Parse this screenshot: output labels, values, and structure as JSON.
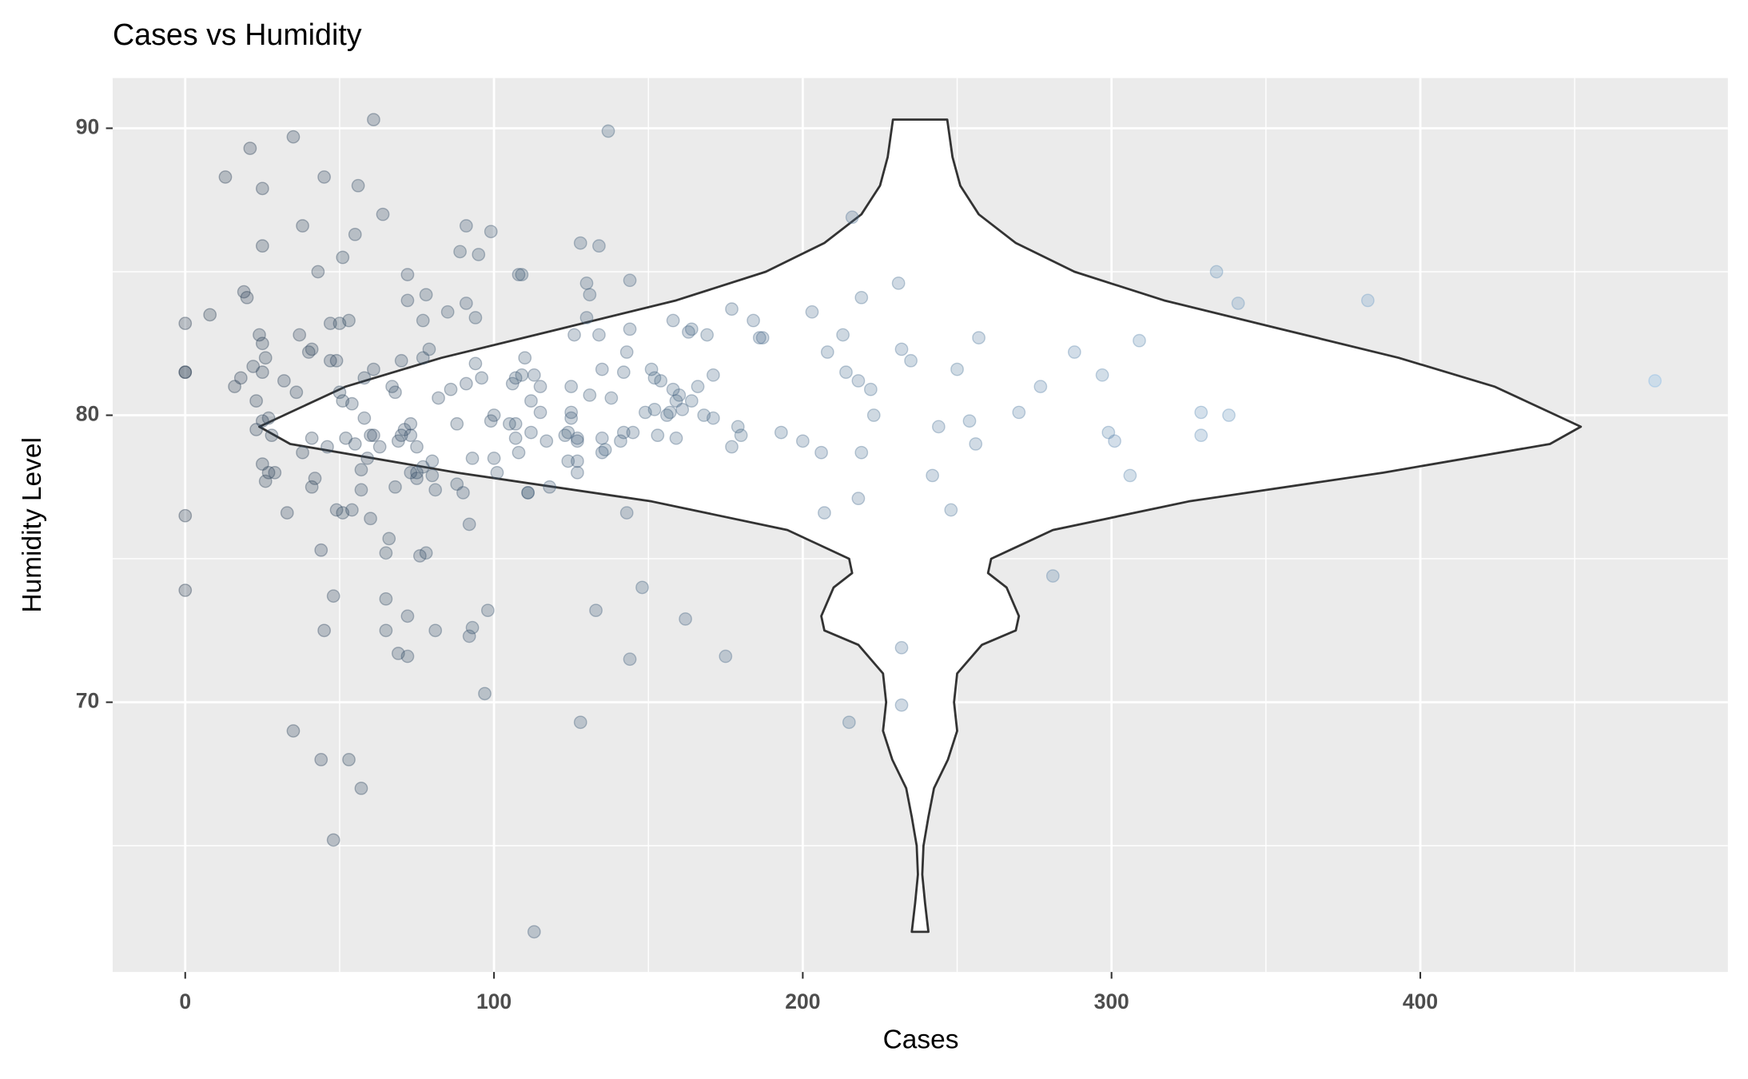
{
  "chart_data": {
    "type": "scatter",
    "title": "Cases vs Humidity",
    "x_label": "Cases",
    "y_label": "Humidity Level",
    "xlim": [
      -23.5,
      499.6
    ],
    "ylim": [
      60.6,
      91.75
    ],
    "xticks": [
      0,
      100,
      200,
      300,
      400
    ],
    "yticks": [
      70,
      80,
      90
    ],
    "xminor": [
      50,
      150,
      250,
      350,
      450
    ],
    "yminor": [
      65,
      75,
      85
    ],
    "grid": true,
    "color_low": "#2a3d52",
    "color_high": "#7fb6e5",
    "opacity": 0.28,
    "violin": {
      "x": 238,
      "y": [
        90.3,
        89,
        88,
        87,
        86,
        85,
        84,
        83,
        82,
        81,
        80,
        79.6,
        79,
        78,
        77,
        76,
        75,
        74.5,
        74,
        73,
        72.5,
        72,
        71,
        70,
        69,
        68,
        67,
        66,
        65,
        64,
        63,
        62
      ],
      "half_width": [
        8.8,
        10.5,
        13,
        19,
        31,
        50,
        79,
        117,
        155,
        186,
        206,
        214,
        204,
        150,
        87,
        43,
        23,
        22,
        28,
        32,
        31,
        20,
        12,
        11,
        12,
        9,
        4.5,
        2.7,
        1.1,
        0.7,
        1.6,
        2.7
      ]
    },
    "x": [
      0,
      0,
      0,
      0,
      0,
      8,
      13,
      16,
      18,
      19,
      20,
      21,
      22,
      23,
      23,
      24,
      25,
      25,
      25,
      25,
      25,
      25,
      26,
      26,
      27,
      27,
      28,
      29,
      32,
      33,
      35,
      35,
      36,
      37,
      38,
      38,
      40,
      41,
      41,
      42,
      41,
      43,
      44,
      45,
      44,
      45,
      46,
      47,
      47,
      48,
      48,
      49,
      49,
      50,
      50,
      51,
      51,
      51,
      52,
      53,
      53,
      54,
      54,
      55,
      55,
      56,
      57,
      57,
      57,
      58,
      58,
      59,
      60,
      60,
      61,
      61,
      61,
      63,
      64,
      65,
      65,
      65,
      66,
      67,
      68,
      68,
      69,
      69,
      70,
      70,
      71,
      72,
      72,
      72,
      72,
      73,
      73,
      73,
      75,
      75,
      75,
      76,
      77,
      77,
      78,
      78,
      77,
      79,
      80,
      80,
      81,
      81,
      82,
      85,
      86,
      88,
      88,
      89,
      90,
      91,
      91,
      91,
      92,
      92,
      93,
      93,
      94,
      94,
      95,
      96,
      97,
      98,
      99,
      99,
      100,
      100,
      101,
      105,
      106,
      107,
      107,
      107,
      108,
      108,
      109,
      109,
      110,
      111,
      111,
      112,
      112,
      113,
      113,
      115,
      115,
      117,
      118,
      123,
      124,
      124,
      125,
      125,
      125,
      126,
      127,
      127,
      127,
      127,
      128,
      128,
      130,
      130,
      131,
      131,
      133,
      134,
      134,
      135,
      135,
      136,
      135,
      137,
      138,
      141,
      142,
      142,
      143,
      143,
      144,
      144,
      144,
      145,
      148,
      149,
      151,
      152,
      152,
      153,
      154,
      156,
      157,
      158,
      158,
      159,
      159,
      160,
      161,
      162,
      163,
      164,
      164,
      166,
      168,
      169,
      171,
      171,
      175,
      177,
      177,
      179,
      180,
      184,
      186,
      187,
      193,
      200,
      203,
      206,
      207,
      208,
      213,
      214,
      215,
      216,
      218,
      218,
      219,
      219,
      222,
      223,
      231,
      232,
      232,
      232,
      235,
      242,
      244,
      248,
      250,
      254,
      256,
      257,
      270,
      277,
      281,
      288,
      297,
      299,
      301,
      306,
      309,
      329,
      329,
      334,
      338,
      341,
      383,
      476
    ],
    "values": [
      83.2,
      81.5,
      81.5,
      76.5,
      73.9,
      83.5,
      88.3,
      81,
      81.3,
      84.3,
      84.1,
      89.3,
      81.7,
      80.5,
      79.5,
      82.8,
      87.9,
      85.9,
      82.5,
      81.5,
      79.8,
      78.3,
      77.7,
      82,
      79.9,
      78,
      79.3,
      78,
      81.2,
      76.6,
      89.7,
      69,
      80.8,
      82.8,
      86.6,
      78.7,
      82.2,
      82.3,
      77.5,
      77.8,
      79.2,
      85,
      75.3,
      72.5,
      68,
      88.3,
      78.9,
      83.2,
      81.9,
      65.2,
      73.7,
      76.7,
      81.9,
      80.8,
      83.2,
      80.5,
      76.6,
      85.5,
      79.2,
      83.3,
      68,
      76.7,
      80.4,
      79,
      86.3,
      88,
      67,
      77.4,
      78.1,
      81.3,
      79.9,
      78.5,
      79.3,
      76.4,
      79.3,
      81.6,
      90.3,
      78.9,
      87,
      75.2,
      73.6,
      72.5,
      75.7,
      81,
      77.5,
      80.8,
      79.1,
      71.7,
      81.9,
      79.3,
      79.5,
      84.9,
      84,
      73,
      71.6,
      79.7,
      78,
      79.3,
      77.8,
      78.9,
      78,
      75.1,
      78.2,
      82,
      75.2,
      84.2,
      83.3,
      82.3,
      77.9,
      78.4,
      72.5,
      77.4,
      80.6,
      83.6,
      80.9,
      79.7,
      77.6,
      85.7,
      77.3,
      83.9,
      86.6,
      81.1,
      76.2,
      72.3,
      78.5,
      72.6,
      83.4,
      81.8,
      85.6,
      81.3,
      70.3,
      73.2,
      79.8,
      86.4,
      80,
      78.5,
      78,
      79.7,
      81.1,
      79.7,
      81.3,
      79.2,
      78.7,
      84.9,
      84.9,
      81.4,
      82,
      77.3,
      77.3,
      80.5,
      79.4,
      62,
      81.4,
      81,
      80.1,
      79.1,
      77.5,
      79.3,
      79.4,
      78.4,
      80.1,
      81,
      79.9,
      82.8,
      78.4,
      78,
      79.1,
      79.2,
      86,
      69.3,
      84.6,
      83.4,
      84.2,
      80.7,
      73.2,
      82.8,
      85.9,
      78.7,
      79.2,
      78.8,
      81.6,
      89.9,
      80.6,
      79.1,
      79.4,
      81.5,
      82.2,
      76.6,
      84.7,
      83,
      71.5,
      79.4,
      74,
      80.1,
      81.6,
      81.3,
      80.2,
      79.3,
      81.2,
      80,
      80.1,
      83.3,
      80.9,
      80.5,
      79.2,
      80.7,
      80.2,
      72.9,
      82.9,
      83,
      80.5,
      81,
      80,
      82.8,
      79.9,
      81.4,
      71.6,
      83.7,
      78.9,
      79.6,
      79.3,
      83.3,
      82.7,
      82.7,
      79.4,
      79.1,
      83.6,
      78.7,
      76.6,
      82.2,
      82.8,
      81.5,
      69.3,
      86.9,
      81.2,
      77.1,
      78.7,
      84.1,
      80.9,
      80,
      84.6,
      82.3,
      71.9,
      69.9,
      81.9,
      77.9,
      79.6,
      76.7,
      81.6,
      79.8,
      79,
      82.7,
      80.1,
      81,
      74.4,
      82.2,
      81.4,
      79.4,
      79.1,
      77.9,
      82.6,
      80.1,
      79.3,
      85,
      80,
      83.9,
      84,
      81.2
    ]
  }
}
